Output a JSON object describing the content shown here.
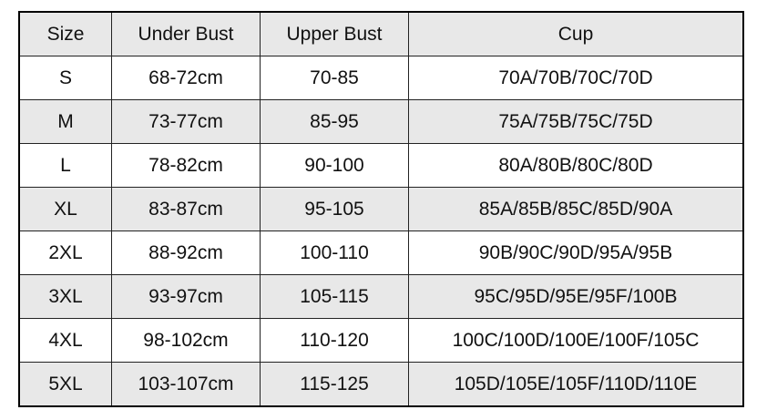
{
  "table": {
    "headers": [
      "Size",
      "Under Bust",
      "Upper Bust",
      "Cup"
    ],
    "rows": [
      [
        "S",
        "68-72cm",
        "70-85",
        "70A/70B/70C/70D"
      ],
      [
        "M",
        "73-77cm",
        "85-95",
        "75A/75B/75C/75D"
      ],
      [
        "L",
        "78-82cm",
        "90-100",
        "80A/80B/80C/80D"
      ],
      [
        "XL",
        "83-87cm",
        "95-105",
        "85A/85B/85C/85D/90A"
      ],
      [
        "2XL",
        "88-92cm",
        "100-110",
        "90B/90C/90D/95A/95B"
      ],
      [
        "3XL",
        "93-97cm",
        "105-115",
        "95C/95D/95E/95F/100B"
      ],
      [
        "4XL",
        "98-102cm",
        "110-120",
        "100C/100D/100E/100F/105C"
      ],
      [
        "5XL",
        "103-107cm",
        "115-125",
        "105D/105E/105F/110D/110E"
      ]
    ],
    "shade_color": "#e8e8e8"
  }
}
